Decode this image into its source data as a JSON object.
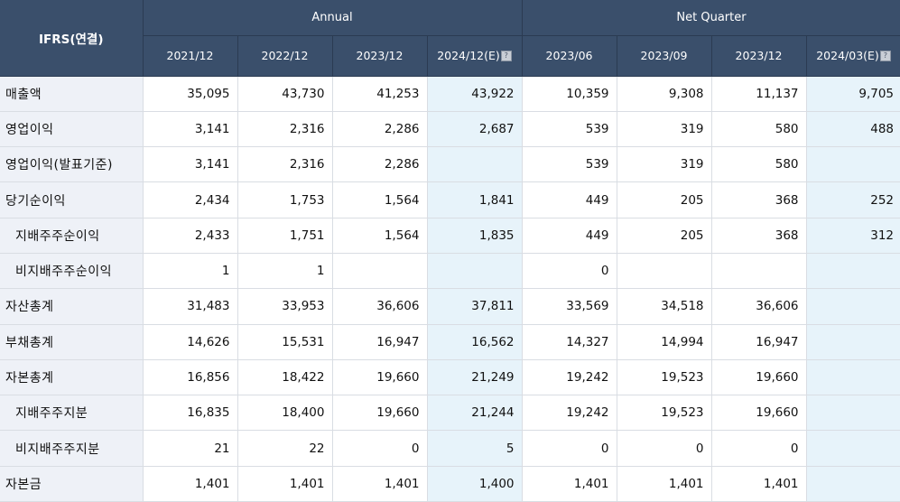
{
  "header": {
    "label": "IFRS(연결)",
    "groups": {
      "annual": "Annual",
      "quarter": "Net Quarter"
    },
    "periods": [
      "2021/12",
      "2022/12",
      "2023/12",
      "2024/12(E)",
      "2023/06",
      "2023/09",
      "2023/12",
      "2024/03(E)"
    ],
    "estimate_icon": "help-icon"
  },
  "rows": [
    {
      "label": "매출액",
      "values": [
        "35,095",
        "43,730",
        "41,253",
        "43,922",
        "10,359",
        "9,308",
        "11,137",
        "9,705"
      ]
    },
    {
      "label": "영업이익",
      "values": [
        "3,141",
        "2,316",
        "2,286",
        "2,687",
        "539",
        "319",
        "580",
        "488"
      ]
    },
    {
      "label": "영업이익(발표기준)",
      "values": [
        "3,141",
        "2,316",
        "2,286",
        "",
        "539",
        "319",
        "580",
        ""
      ]
    },
    {
      "label": "당기순이익",
      "values": [
        "2,434",
        "1,753",
        "1,564",
        "1,841",
        "449",
        "205",
        "368",
        "252"
      ]
    },
    {
      "label": "지배주주순이익",
      "values": [
        "2,433",
        "1,751",
        "1,564",
        "1,835",
        "449",
        "205",
        "368",
        "312"
      ]
    },
    {
      "label": "비지배주주순이익",
      "values": [
        "1",
        "1",
        "",
        "",
        "0",
        "",
        "",
        ""
      ]
    },
    {
      "label": "자산총계",
      "values": [
        "31,483",
        "33,953",
        "36,606",
        "37,811",
        "33,569",
        "34,518",
        "36,606",
        ""
      ]
    },
    {
      "label": "부채총계",
      "values": [
        "14,626",
        "15,531",
        "16,947",
        "16,562",
        "14,327",
        "14,994",
        "16,947",
        ""
      ]
    },
    {
      "label": "자본총계",
      "values": [
        "16,856",
        "18,422",
        "19,660",
        "21,249",
        "19,242",
        "19,523",
        "19,660",
        ""
      ]
    },
    {
      "label": "지배주주지분",
      "values": [
        "16,835",
        "18,400",
        "19,660",
        "21,244",
        "19,242",
        "19,523",
        "19,660",
        ""
      ]
    },
    {
      "label": "비지배주주지분",
      "values": [
        "21",
        "22",
        "0",
        "5",
        "0",
        "0",
        "0",
        ""
      ]
    },
    {
      "label": "자본금",
      "values": [
        "1,401",
        "1,401",
        "1,401",
        "1,400",
        "1,401",
        "1,401",
        "1,401",
        ""
      ]
    }
  ],
  "colors": {
    "header_bg": "#3a4f6b",
    "label_bg": "#eef1f7",
    "estimate_bg": "#e7f3fa"
  }
}
